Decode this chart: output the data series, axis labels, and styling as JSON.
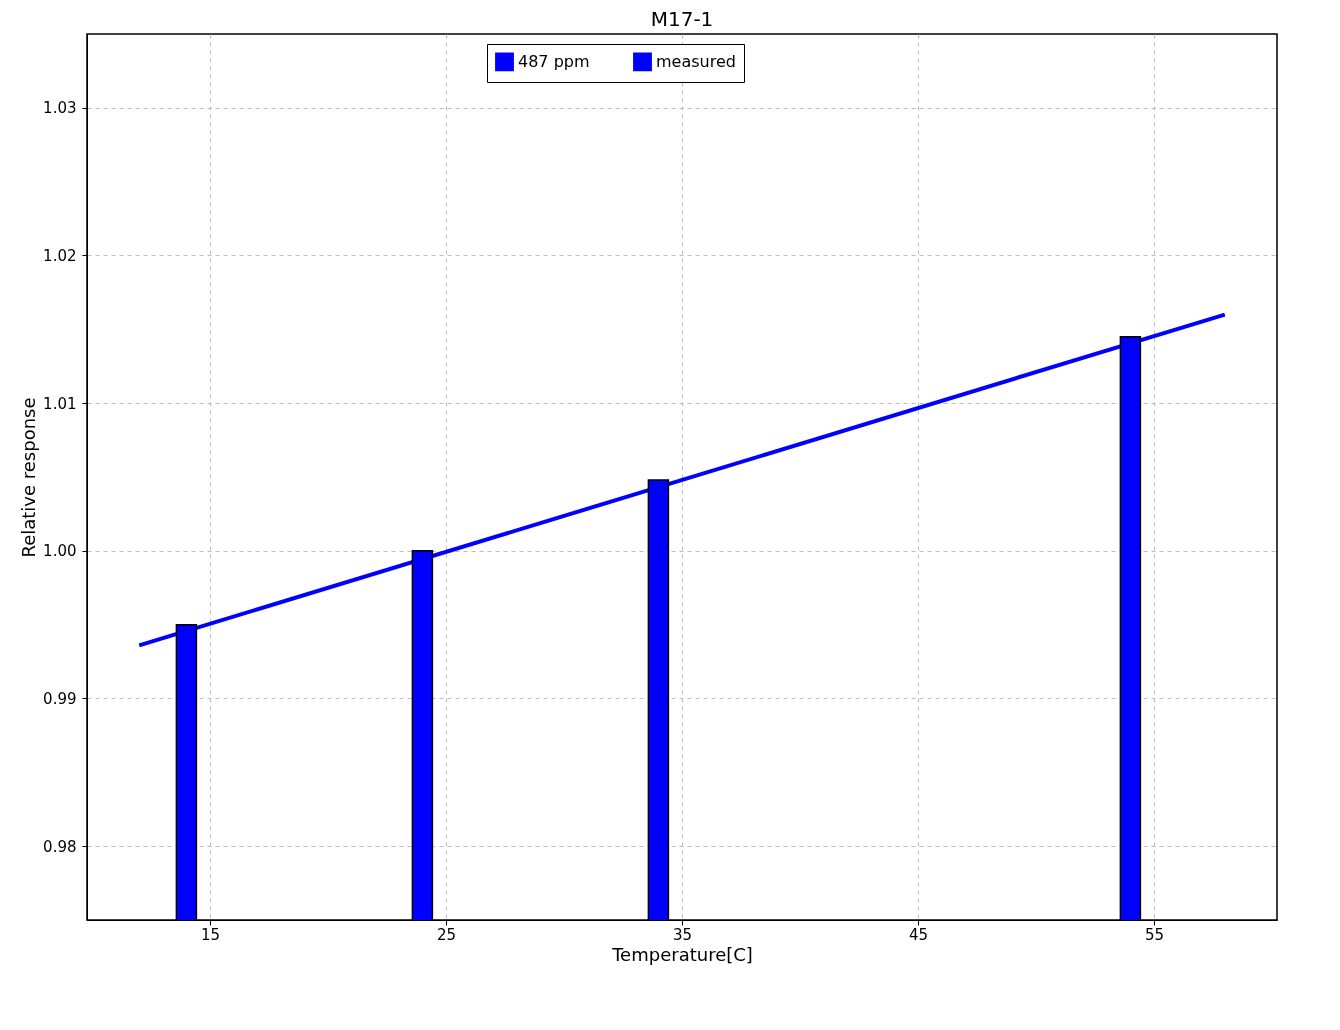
{
  "chart_data": {
    "type": "bar",
    "title": "M17-1",
    "xlabel": "Temperature[C]",
    "ylabel": "Relative response",
    "x": [
      14,
      24,
      34,
      54
    ],
    "series": [
      {
        "name": "487 ppm",
        "type": "line",
        "color": "#0000ff",
        "x": [
          12,
          58
        ],
        "values": [
          0.9936,
          1.016
        ]
      },
      {
        "name": "measured",
        "color": "#0000ff",
        "values": [
          0.995,
          1.0,
          1.0048,
          1.0145
        ]
      }
    ],
    "xlim": [
      10,
      60
    ],
    "xticks": [
      15,
      25,
      35,
      45,
      55
    ],
    "ylim": [
      0.975,
      1.035
    ],
    "yticks": [
      0.98,
      0.99,
      {
        "value": 1.0,
        "label": "1.00"
      },
      1.01,
      1.02,
      1.03
    ],
    "grid": true,
    "legend": "top",
    "line_style": "solid"
  }
}
